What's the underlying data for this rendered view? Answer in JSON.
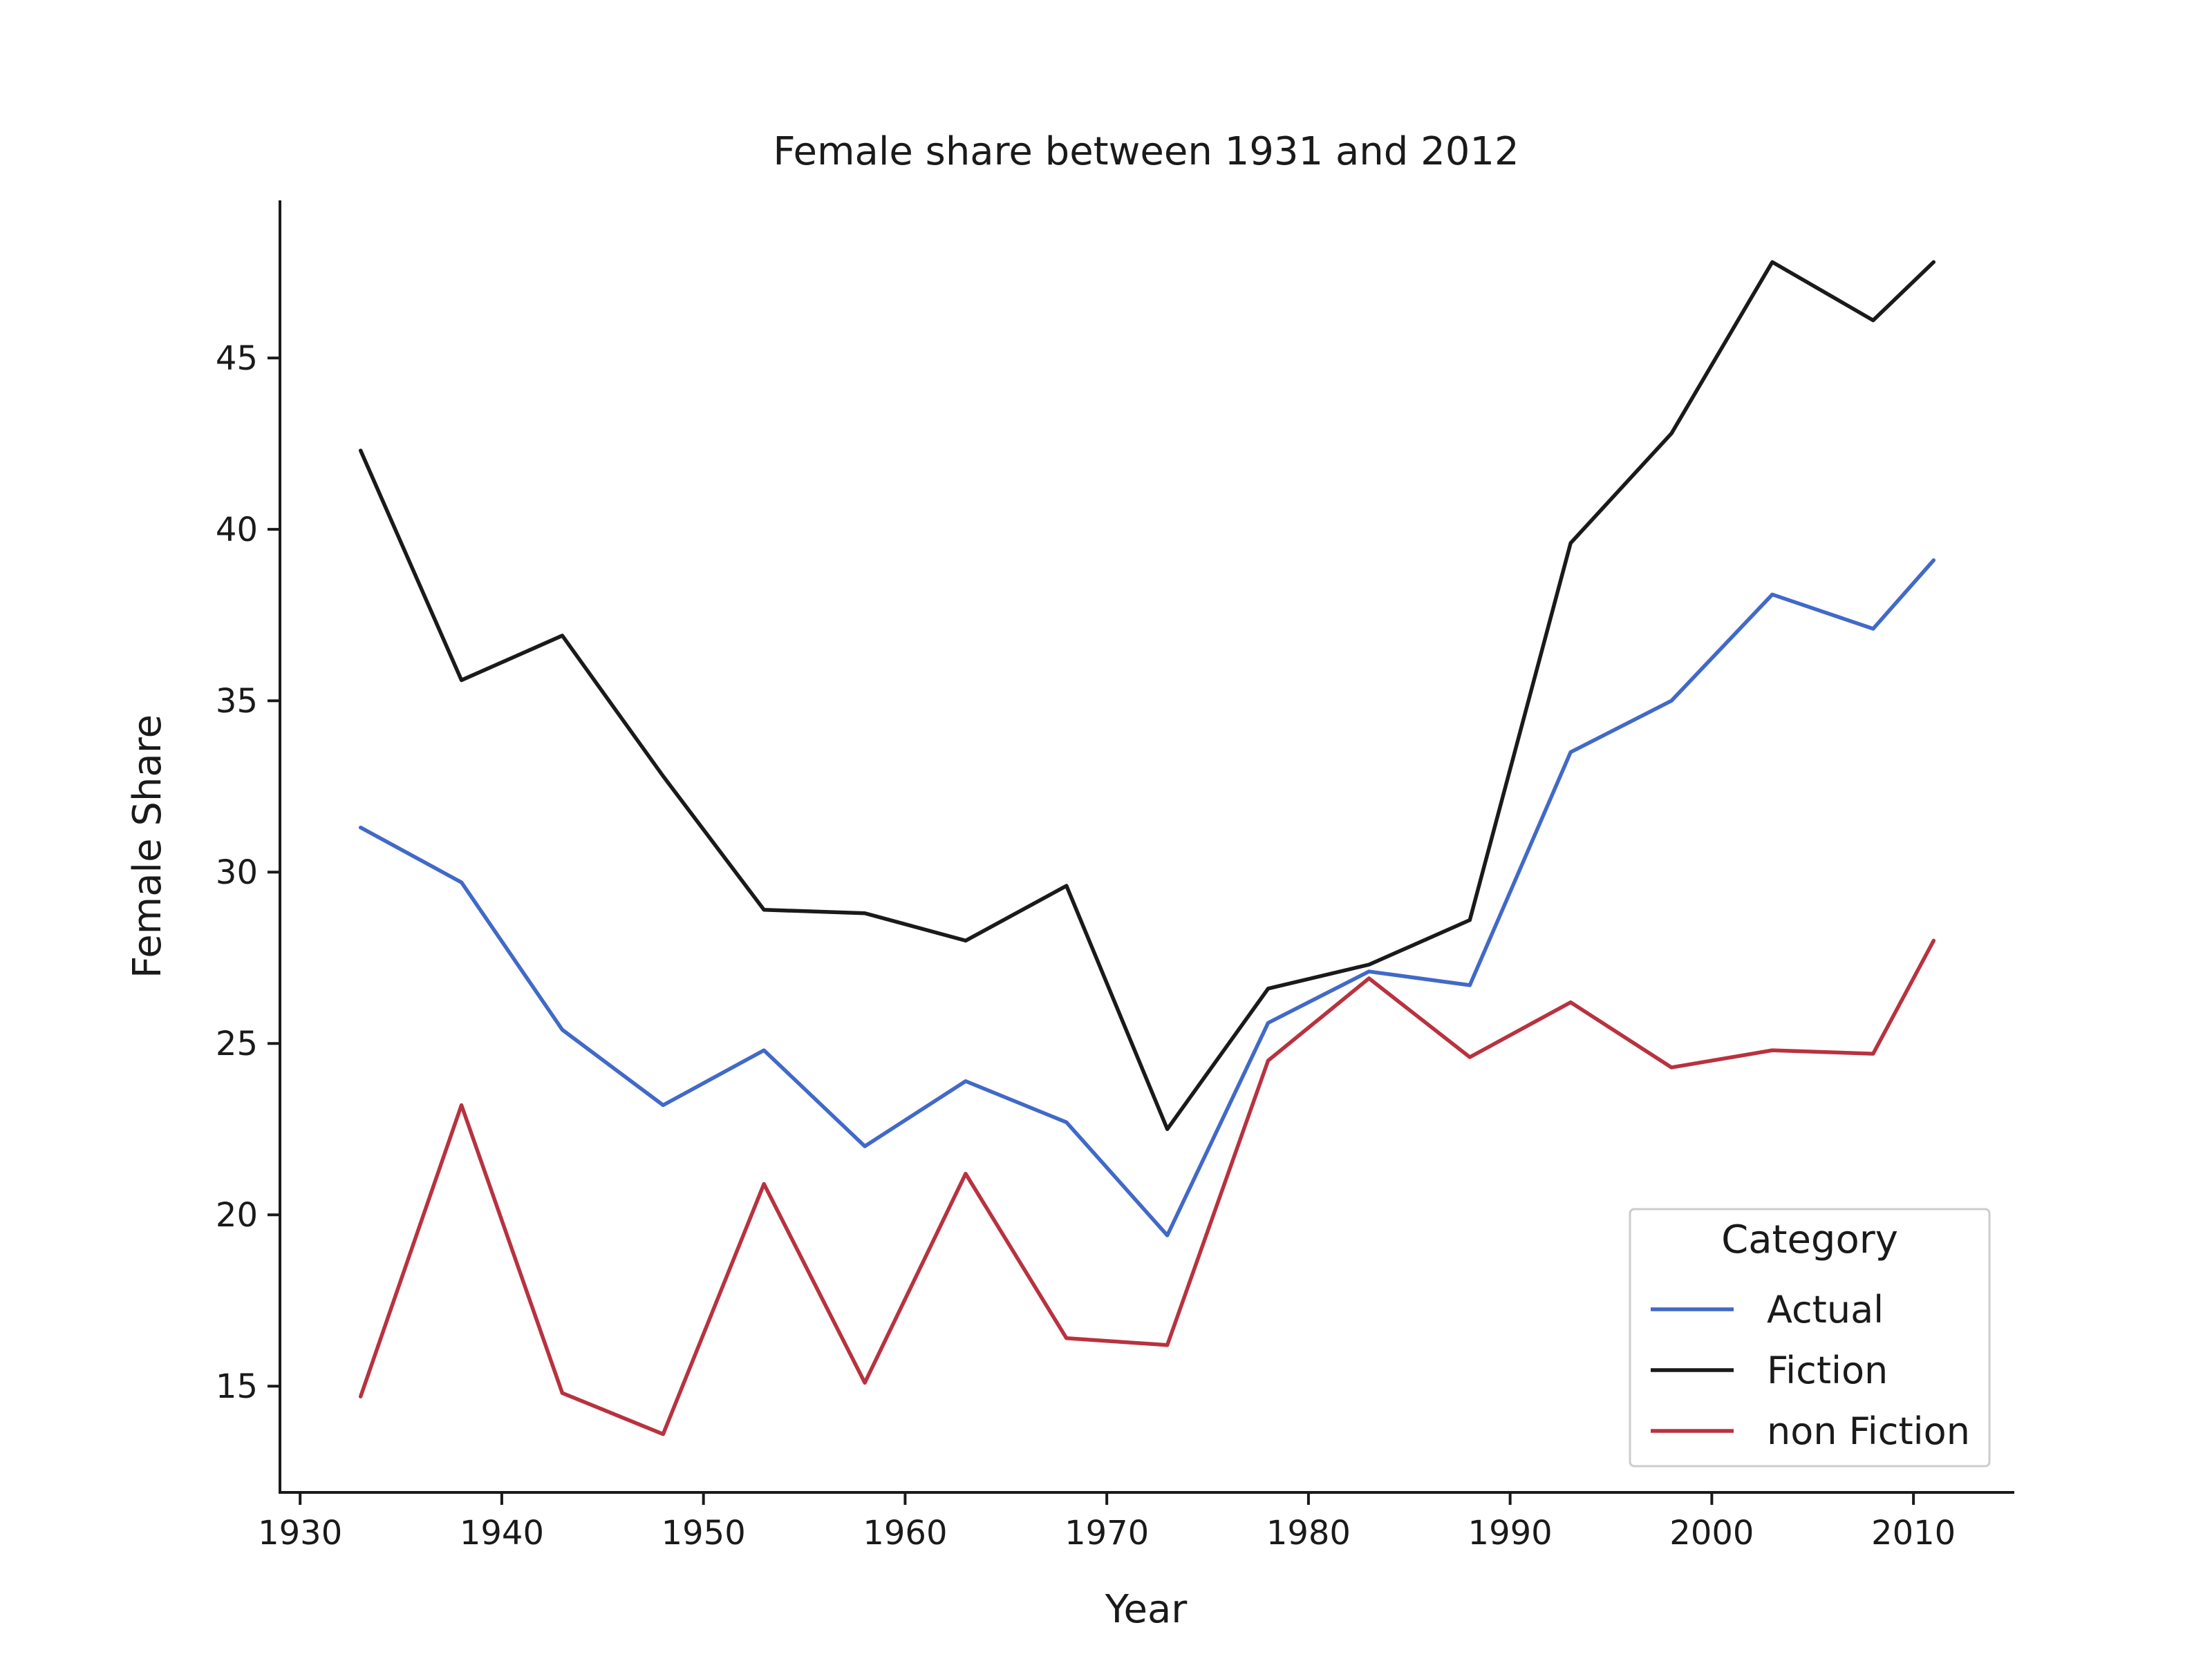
{
  "chart_data": {
    "type": "line",
    "title": "Female share between 1931 and 2012",
    "xlabel": "Year",
    "ylabel": "Female Share",
    "x": [
      1933,
      1938,
      1943,
      1948,
      1953,
      1958,
      1963,
      1968,
      1973,
      1978,
      1983,
      1988,
      1993,
      1998,
      2003,
      2008,
      2011
    ],
    "series": [
      {
        "name": "Actual",
        "color": "#4169c8",
        "values": [
          31.3,
          29.7,
          25.4,
          23.2,
          24.8,
          22.0,
          23.9,
          22.7,
          19.4,
          25.6,
          27.1,
          26.7,
          33.5,
          35.0,
          38.1,
          37.1,
          39.1
        ]
      },
      {
        "name": "Fiction",
        "color": "#1a1a1a",
        "values": [
          42.3,
          35.6,
          36.9,
          32.8,
          28.9,
          28.8,
          28.0,
          29.6,
          22.5,
          26.6,
          27.3,
          28.6,
          39.6,
          42.8,
          47.8,
          46.1,
          47.8
        ]
      },
      {
        "name": "non Fiction",
        "color": "#b8323f",
        "values": [
          14.7,
          23.2,
          14.8,
          13.6,
          20.9,
          15.1,
          21.2,
          16.4,
          16.2,
          24.5,
          26.9,
          24.6,
          26.2,
          24.3,
          24.8,
          24.7,
          28.0
        ]
      }
    ],
    "xlim": [
      1929,
      2015
    ],
    "ylim": [
      11.9,
      49.6
    ],
    "xticks": [
      1930,
      1940,
      1950,
      1960,
      1970,
      1980,
      1990,
      2000,
      2010
    ],
    "yticks": [
      15,
      20,
      25,
      30,
      35,
      40,
      45
    ],
    "grid": false,
    "legend": {
      "title": "Category",
      "placement": "lower-right"
    }
  }
}
